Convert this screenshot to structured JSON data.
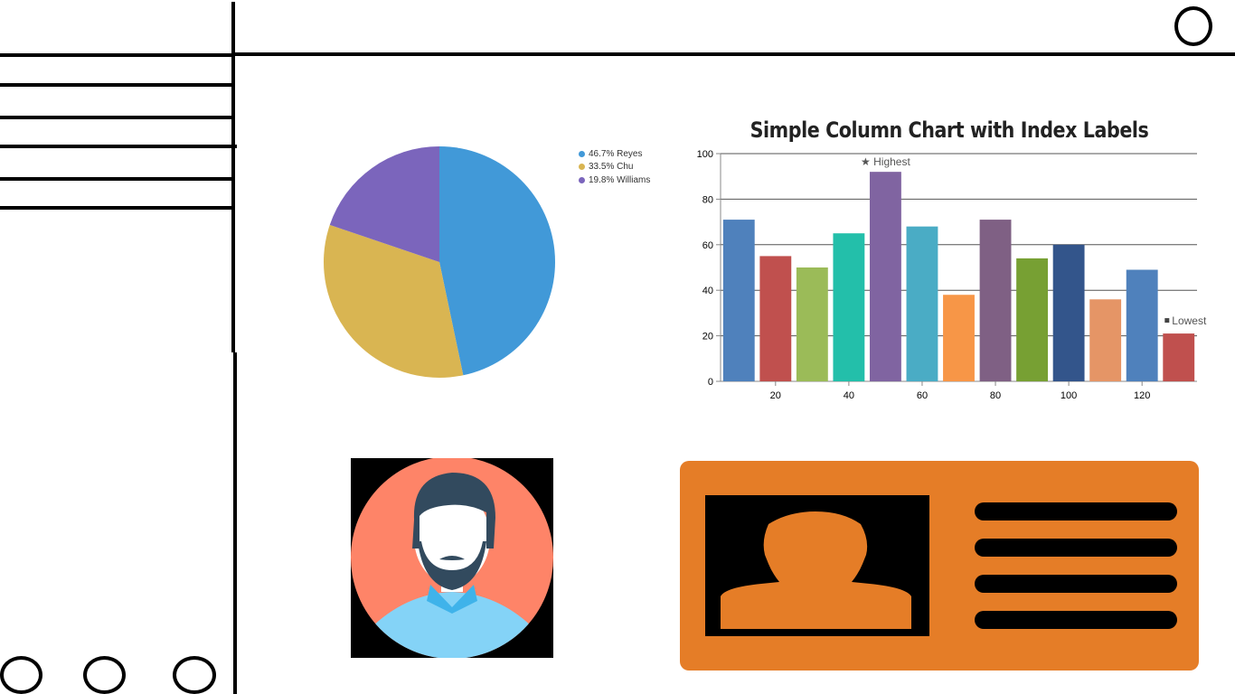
{
  "pie": {
    "slices": [
      {
        "label": "46.7% Reyes",
        "percent": 46.7,
        "color": "#4199d8"
      },
      {
        "label": "33.5% Chu",
        "percent": 33.5,
        "color": "#d9b552"
      },
      {
        "label": "19.8% Williams",
        "percent": 19.8,
        "color": "#7b65bc"
      }
    ]
  },
  "chart_data": [
    {
      "type": "pie",
      "labels": [
        "46.7% Reyes",
        "33.5% Chu",
        "19.8% Williams"
      ],
      "values": [
        46.7,
        33.5,
        19.8
      ],
      "legend": "top-right"
    },
    {
      "type": "bar",
      "title": "Simple Column Chart with Index Labels",
      "x": [
        10,
        20,
        30,
        40,
        50,
        60,
        70,
        80,
        90,
        100,
        110,
        120,
        130
      ],
      "values": [
        71,
        55,
        50,
        65,
        92,
        68,
        38,
        71,
        54,
        60,
        36,
        49,
        21
      ],
      "colors": [
        "#4f81bc",
        "#c0504e",
        "#9bbb58",
        "#23bfaa",
        "#8064a1",
        "#4aacc5",
        "#f79647",
        "#7f6084",
        "#77a033",
        "#33558b",
        "#e59566",
        "#4f81bc",
        "#c0504e"
      ],
      "index_labels": [
        {
          "x": 50,
          "text": "★ Highest"
        },
        {
          "x": 130,
          "text": "Lowest"
        }
      ],
      "xticks": [
        "20",
        "40",
        "60",
        "80",
        "100",
        "120"
      ],
      "yticks": [
        "0",
        "20",
        "40",
        "60",
        "80",
        "100"
      ],
      "ylim": [
        0,
        100
      ],
      "xlim": [
        5,
        135
      ],
      "grid": true
    }
  ]
}
